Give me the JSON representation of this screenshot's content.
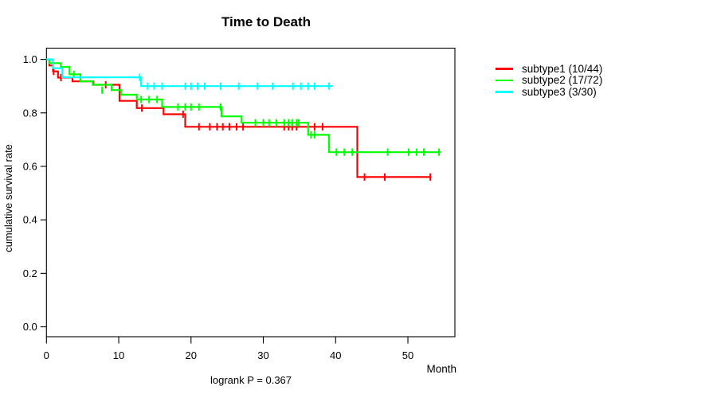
{
  "chart_data": {
    "type": "line",
    "variant": "kaplan-meier-survival-steps",
    "title": "Time to Death",
    "xlabel": "Month",
    "ylabel": "cumulative survival rate",
    "annotation": "logrank P = 0.367",
    "x_ticks": [
      0,
      10,
      20,
      30,
      40,
      50
    ],
    "x_tick_labels": [
      "0",
      "10",
      "20",
      "30",
      "40",
      "50"
    ],
    "y_ticks": [
      0,
      0.2,
      0.4,
      0.6,
      0.8,
      1
    ],
    "y_tick_labels": [
      "0.0",
      "0.2",
      "0.4",
      "0.6",
      "0.8",
      "1.0"
    ],
    "xlim": [
      0,
      56.5
    ],
    "ylim": [
      -0.037,
      1.042
    ],
    "grid": false,
    "legend_position": "right-outside",
    "axis_color": "#000000",
    "background_color": "#ffffff",
    "series": [
      {
        "name": "subtype1",
        "label": "subtype1 (10/44)",
        "events": 10,
        "n": 44,
        "color": "#ff0000",
        "steps": [
          [
            0,
            1
          ],
          [
            0.4,
            0.977
          ],
          [
            0.9,
            0.955
          ],
          [
            1.6,
            0.932
          ],
          [
            3.6,
            0.918
          ],
          [
            6.5,
            0.905
          ],
          [
            10.1,
            0.845
          ],
          [
            12.5,
            0.818
          ],
          [
            16.2,
            0.795
          ],
          [
            19.2,
            0.748
          ],
          [
            43,
            0.56
          ]
        ],
        "end_month": 53.2,
        "censor_marks": [
          [
            1,
            0.955
          ],
          [
            2,
            0.932
          ],
          [
            8.2,
            0.905
          ],
          [
            13.2,
            0.818
          ],
          [
            18.9,
            0.795
          ],
          [
            21.1,
            0.748
          ],
          [
            22.6,
            0.748
          ],
          [
            23.6,
            0.748
          ],
          [
            24.4,
            0.748
          ],
          [
            25.3,
            0.748
          ],
          [
            26.3,
            0.748
          ],
          [
            27.2,
            0.748
          ],
          [
            32.9,
            0.748
          ],
          [
            33.5,
            0.748
          ],
          [
            34,
            0.748
          ],
          [
            34.6,
            0.748
          ],
          [
            37.1,
            0.748
          ],
          [
            38.2,
            0.748
          ],
          [
            44,
            0.56
          ],
          [
            46.8,
            0.56
          ],
          [
            53.1,
            0.56
          ]
        ]
      },
      {
        "name": "subtype2",
        "label": "subtype2 (17/72)",
        "events": 17,
        "n": 72,
        "color": "#00ff00",
        "steps": [
          [
            0,
            1
          ],
          [
            0.4,
            0.986
          ],
          [
            2,
            0.972
          ],
          [
            3.2,
            0.944
          ],
          [
            4.7,
            0.918
          ],
          [
            6.4,
            0.905
          ],
          [
            9,
            0.885
          ],
          [
            10.3,
            0.868
          ],
          [
            12.5,
            0.85
          ],
          [
            16,
            0.822
          ],
          [
            24.2,
            0.787
          ],
          [
            27,
            0.763
          ],
          [
            36.2,
            0.718
          ],
          [
            39.1,
            0.653
          ]
        ],
        "end_month": 54.5,
        "censor_marks": [
          [
            3.8,
            0.944
          ],
          [
            7.7,
            0.885
          ],
          [
            13.1,
            0.85
          ],
          [
            14.2,
            0.85
          ],
          [
            15.3,
            0.85
          ],
          [
            18.2,
            0.822
          ],
          [
            19.2,
            0.822
          ],
          [
            20,
            0.822
          ],
          [
            21.1,
            0.822
          ],
          [
            24.1,
            0.822
          ],
          [
            28.9,
            0.763
          ],
          [
            30,
            0.763
          ],
          [
            30.8,
            0.763
          ],
          [
            31.8,
            0.763
          ],
          [
            32.9,
            0.763
          ],
          [
            33.5,
            0.763
          ],
          [
            34,
            0.763
          ],
          [
            34.6,
            0.763
          ],
          [
            34.9,
            0.763
          ],
          [
            36.6,
            0.718
          ],
          [
            37.1,
            0.718
          ],
          [
            40.1,
            0.653
          ],
          [
            41.2,
            0.653
          ],
          [
            42.3,
            0.653
          ],
          [
            47.2,
            0.653
          ],
          [
            50.1,
            0.653
          ],
          [
            51.2,
            0.653
          ],
          [
            52.2,
            0.653
          ],
          [
            54.3,
            0.653
          ]
        ]
      },
      {
        "name": "subtype3",
        "label": "subtype3 (3/30)",
        "events": 3,
        "n": 30,
        "color": "#00ffff",
        "steps": [
          [
            0,
            1
          ],
          [
            0.9,
            0.967
          ],
          [
            2.2,
            0.933
          ],
          [
            13.1,
            0.9
          ]
        ],
        "end_month": 39.6,
        "censor_marks": [
          [
            12.9,
            0.933
          ],
          [
            14,
            0.9
          ],
          [
            14.9,
            0.9
          ],
          [
            16,
            0.9
          ],
          [
            19.2,
            0.9
          ],
          [
            20,
            0.9
          ],
          [
            20.9,
            0.9
          ],
          [
            21.9,
            0.9
          ],
          [
            24.1,
            0.9
          ],
          [
            26.6,
            0.9
          ],
          [
            29.2,
            0.9
          ],
          [
            31.3,
            0.9
          ],
          [
            34.1,
            0.9
          ],
          [
            35.2,
            0.9
          ],
          [
            36.2,
            0.9
          ],
          [
            37.1,
            0.9
          ],
          [
            39.1,
            0.9
          ]
        ]
      }
    ]
  }
}
